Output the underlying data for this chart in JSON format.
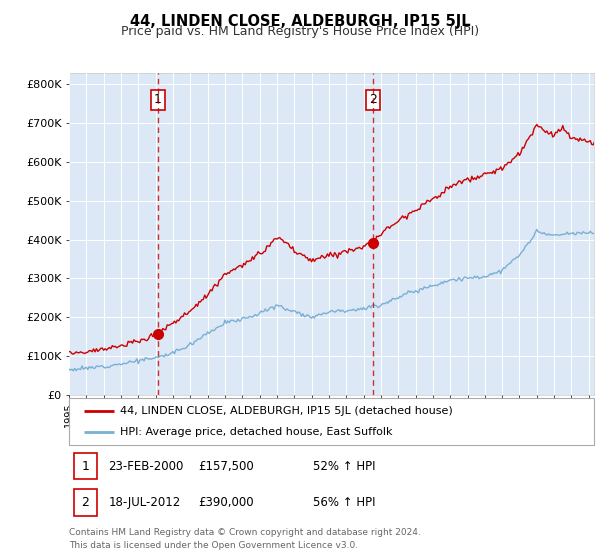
{
  "title": "44, LINDEN CLOSE, ALDEBURGH, IP15 5JL",
  "subtitle": "Price paid vs. HM Land Registry's House Price Index (HPI)",
  "ylabel_ticks": [
    "£0",
    "£100K",
    "£200K",
    "£300K",
    "£400K",
    "£500K",
    "£600K",
    "£700K",
    "£800K"
  ],
  "ylim": [
    0,
    830000
  ],
  "xlim_start": 1995.0,
  "xlim_end": 2025.3,
  "sale1_x": 2000.14,
  "sale1_y": 157500,
  "sale2_x": 2012.54,
  "sale2_y": 390000,
  "sale_color": "#cc0000",
  "hpi_color": "#7ab0d4",
  "bg_color": "#dce8f5",
  "grid_color": "#ffffff",
  "legend_label1": "44, LINDEN CLOSE, ALDEBURGH, IP15 5JL (detached house)",
  "legend_label2": "HPI: Average price, detached house, East Suffolk",
  "annotation1_label": "1",
  "annotation2_label": "2",
  "table1": [
    "1",
    "23-FEB-2000",
    "£157,500",
    "52% ↑ HPI"
  ],
  "table2": [
    "2",
    "18-JUL-2012",
    "£390,000",
    "56% ↑ HPI"
  ],
  "footer": "Contains HM Land Registry data © Crown copyright and database right 2024.\nThis data is licensed under the Open Government Licence v3.0.",
  "hpi_anchors": [
    [
      1995,
      65000
    ],
    [
      1996,
      68000
    ],
    [
      1997,
      74000
    ],
    [
      1998,
      80000
    ],
    [
      1999,
      88000
    ],
    [
      2000,
      95000
    ],
    [
      2001,
      108000
    ],
    [
      2002,
      130000
    ],
    [
      2003,
      160000
    ],
    [
      2004,
      185000
    ],
    [
      2005,
      195000
    ],
    [
      2006,
      210000
    ],
    [
      2007,
      230000
    ],
    [
      2008,
      215000
    ],
    [
      2009,
      200000
    ],
    [
      2010,
      215000
    ],
    [
      2011,
      218000
    ],
    [
      2012,
      222000
    ],
    [
      2013,
      232000
    ],
    [
      2014,
      252000
    ],
    [
      2015,
      268000
    ],
    [
      2016,
      282000
    ],
    [
      2017,
      296000
    ],
    [
      2018,
      300000
    ],
    [
      2019,
      305000
    ],
    [
      2020,
      320000
    ],
    [
      2021,
      360000
    ],
    [
      2022,
      420000
    ],
    [
      2023,
      410000
    ],
    [
      2024,
      415000
    ],
    [
      2025,
      418000
    ]
  ],
  "prop_anchors": [
    [
      1995,
      108000
    ],
    [
      1996,
      112000
    ],
    [
      1997,
      118000
    ],
    [
      1998,
      125000
    ],
    [
      1999,
      138000
    ],
    [
      2000.14,
      157500
    ],
    [
      2001,
      185000
    ],
    [
      2002,
      215000
    ],
    [
      2003,
      260000
    ],
    [
      2004,
      310000
    ],
    [
      2005,
      335000
    ],
    [
      2006,
      360000
    ],
    [
      2007,
      405000
    ],
    [
      2007.5,
      395000
    ],
    [
      2008,
      370000
    ],
    [
      2009,
      345000
    ],
    [
      2010,
      360000
    ],
    [
      2011,
      370000
    ],
    [
      2012.54,
      390000
    ],
    [
      2012.8,
      405000
    ],
    [
      2013,
      415000
    ],
    [
      2014,
      450000
    ],
    [
      2015,
      478000
    ],
    [
      2016,
      505000
    ],
    [
      2017,
      535000
    ],
    [
      2018,
      555000
    ],
    [
      2019,
      565000
    ],
    [
      2020,
      585000
    ],
    [
      2021,
      620000
    ],
    [
      2022,
      695000
    ],
    [
      2022.5,
      680000
    ],
    [
      2023,
      670000
    ],
    [
      2023.5,
      690000
    ],
    [
      2024,
      660000
    ],
    [
      2025,
      650000
    ]
  ]
}
